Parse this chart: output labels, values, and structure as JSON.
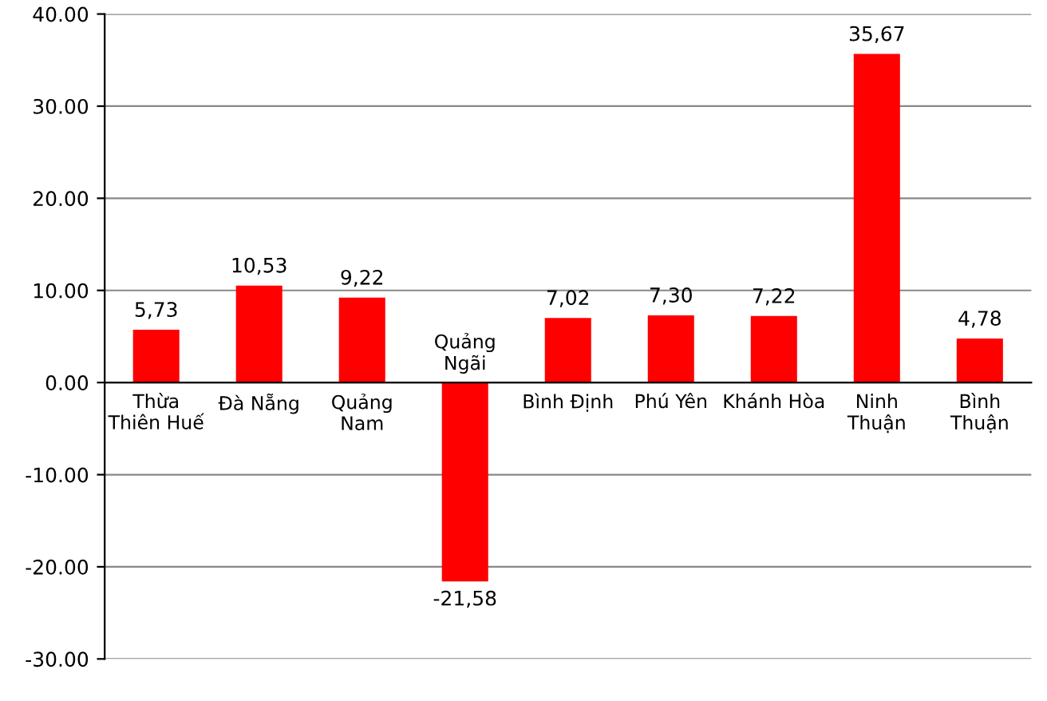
{
  "chart_data": {
    "type": "bar",
    "categories": [
      "Thừa\nThiên Huế",
      "Đà Nẵng",
      "Quảng\nNam",
      "Quảng\nNgãi",
      "Bình Định",
      "Phú Yên",
      "Khánh Hòa",
      "Ninh\nThuận",
      "Bình\nThuận"
    ],
    "values": [
      5.73,
      10.53,
      9.22,
      -21.58,
      7.02,
      7.3,
      7.22,
      35.67,
      4.78
    ],
    "value_labels": [
      "5,73",
      "10,53",
      "9,22",
      "-21,58",
      "7,02",
      "7,30",
      "7,22",
      "35,67",
      "4,78"
    ],
    "color": "#ff0000",
    "ylim": [
      -30,
      40
    ],
    "yticks": [
      {
        "value": -30,
        "label": "-30.00"
      },
      {
        "value": -20,
        "label": "-20.00"
      },
      {
        "value": -10,
        "label": "-10.00"
      },
      {
        "value": 0,
        "label": "0.00"
      },
      {
        "value": 10,
        "label": "10.00"
      },
      {
        "value": 20,
        "label": "20.00"
      },
      {
        "value": 30,
        "label": "30.00"
      },
      {
        "value": 40,
        "label": "40.00"
      }
    ],
    "grid": "y",
    "legend": false
  }
}
